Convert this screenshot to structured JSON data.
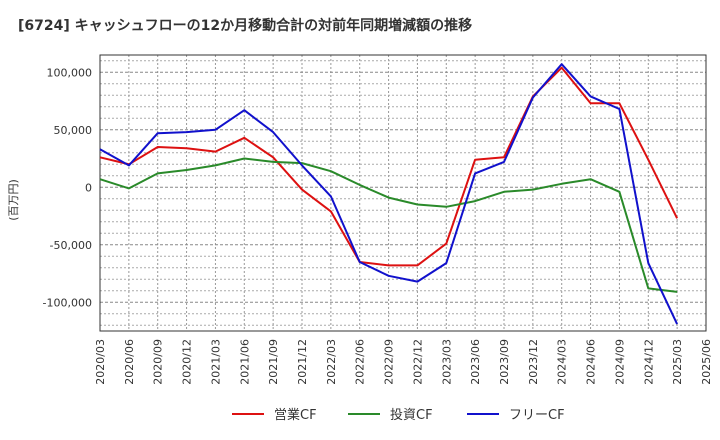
{
  "chart_data": {
    "type": "line",
    "title": "[6724]  キャッシュフローの12か月移動合計の対前年同期増減額の推移",
    "ylabel": "(百万円)",
    "xlabel": "",
    "ylim": [
      -125000,
      115000
    ],
    "yticks": [
      100000,
      50000,
      0,
      -50000,
      -100000
    ],
    "ytick_labels": [
      "100,000",
      "50,000",
      "0",
      "-50,000",
      "-100,000"
    ],
    "categories": [
      "2020/03",
      "2020/06",
      "2020/09",
      "2020/12",
      "2021/03",
      "2021/06",
      "2021/09",
      "2021/12",
      "2022/03",
      "2022/06",
      "2022/09",
      "2022/12",
      "2023/03",
      "2023/06",
      "2023/09",
      "2023/12",
      "2024/03",
      "2024/06",
      "2024/09",
      "2024/12",
      "2025/03",
      "2025/06"
    ],
    "grid": true,
    "legend_position": "bottom",
    "series": [
      {
        "name": "営業CF",
        "color": "#dd1111",
        "values": [
          26000,
          20000,
          35000,
          34000,
          31000,
          43000,
          26000,
          -2000,
          -21000,
          -65000,
          -68000,
          -68000,
          -49000,
          24000,
          26000,
          79000,
          104000,
          73000,
          73000,
          24000,
          -27000,
          null
        ]
      },
      {
        "name": "投資CF",
        "color": "#2a8a2a",
        "values": [
          7000,
          -1000,
          12000,
          15000,
          19000,
          25000,
          22000,
          21000,
          14000,
          2000,
          -9000,
          -15000,
          -17000,
          -12000,
          -4000,
          -2000,
          3000,
          7000,
          -4000,
          -88000,
          -91000,
          null
        ]
      },
      {
        "name": "フリーCF",
        "color": "#1111cc",
        "values": [
          33000,
          19000,
          47000,
          48000,
          50000,
          67000,
          48000,
          19000,
          -8000,
          -65000,
          -77000,
          -82000,
          -66000,
          12000,
          22000,
          78000,
          107000,
          79000,
          68000,
          -66000,
          -119000,
          null
        ]
      }
    ]
  }
}
